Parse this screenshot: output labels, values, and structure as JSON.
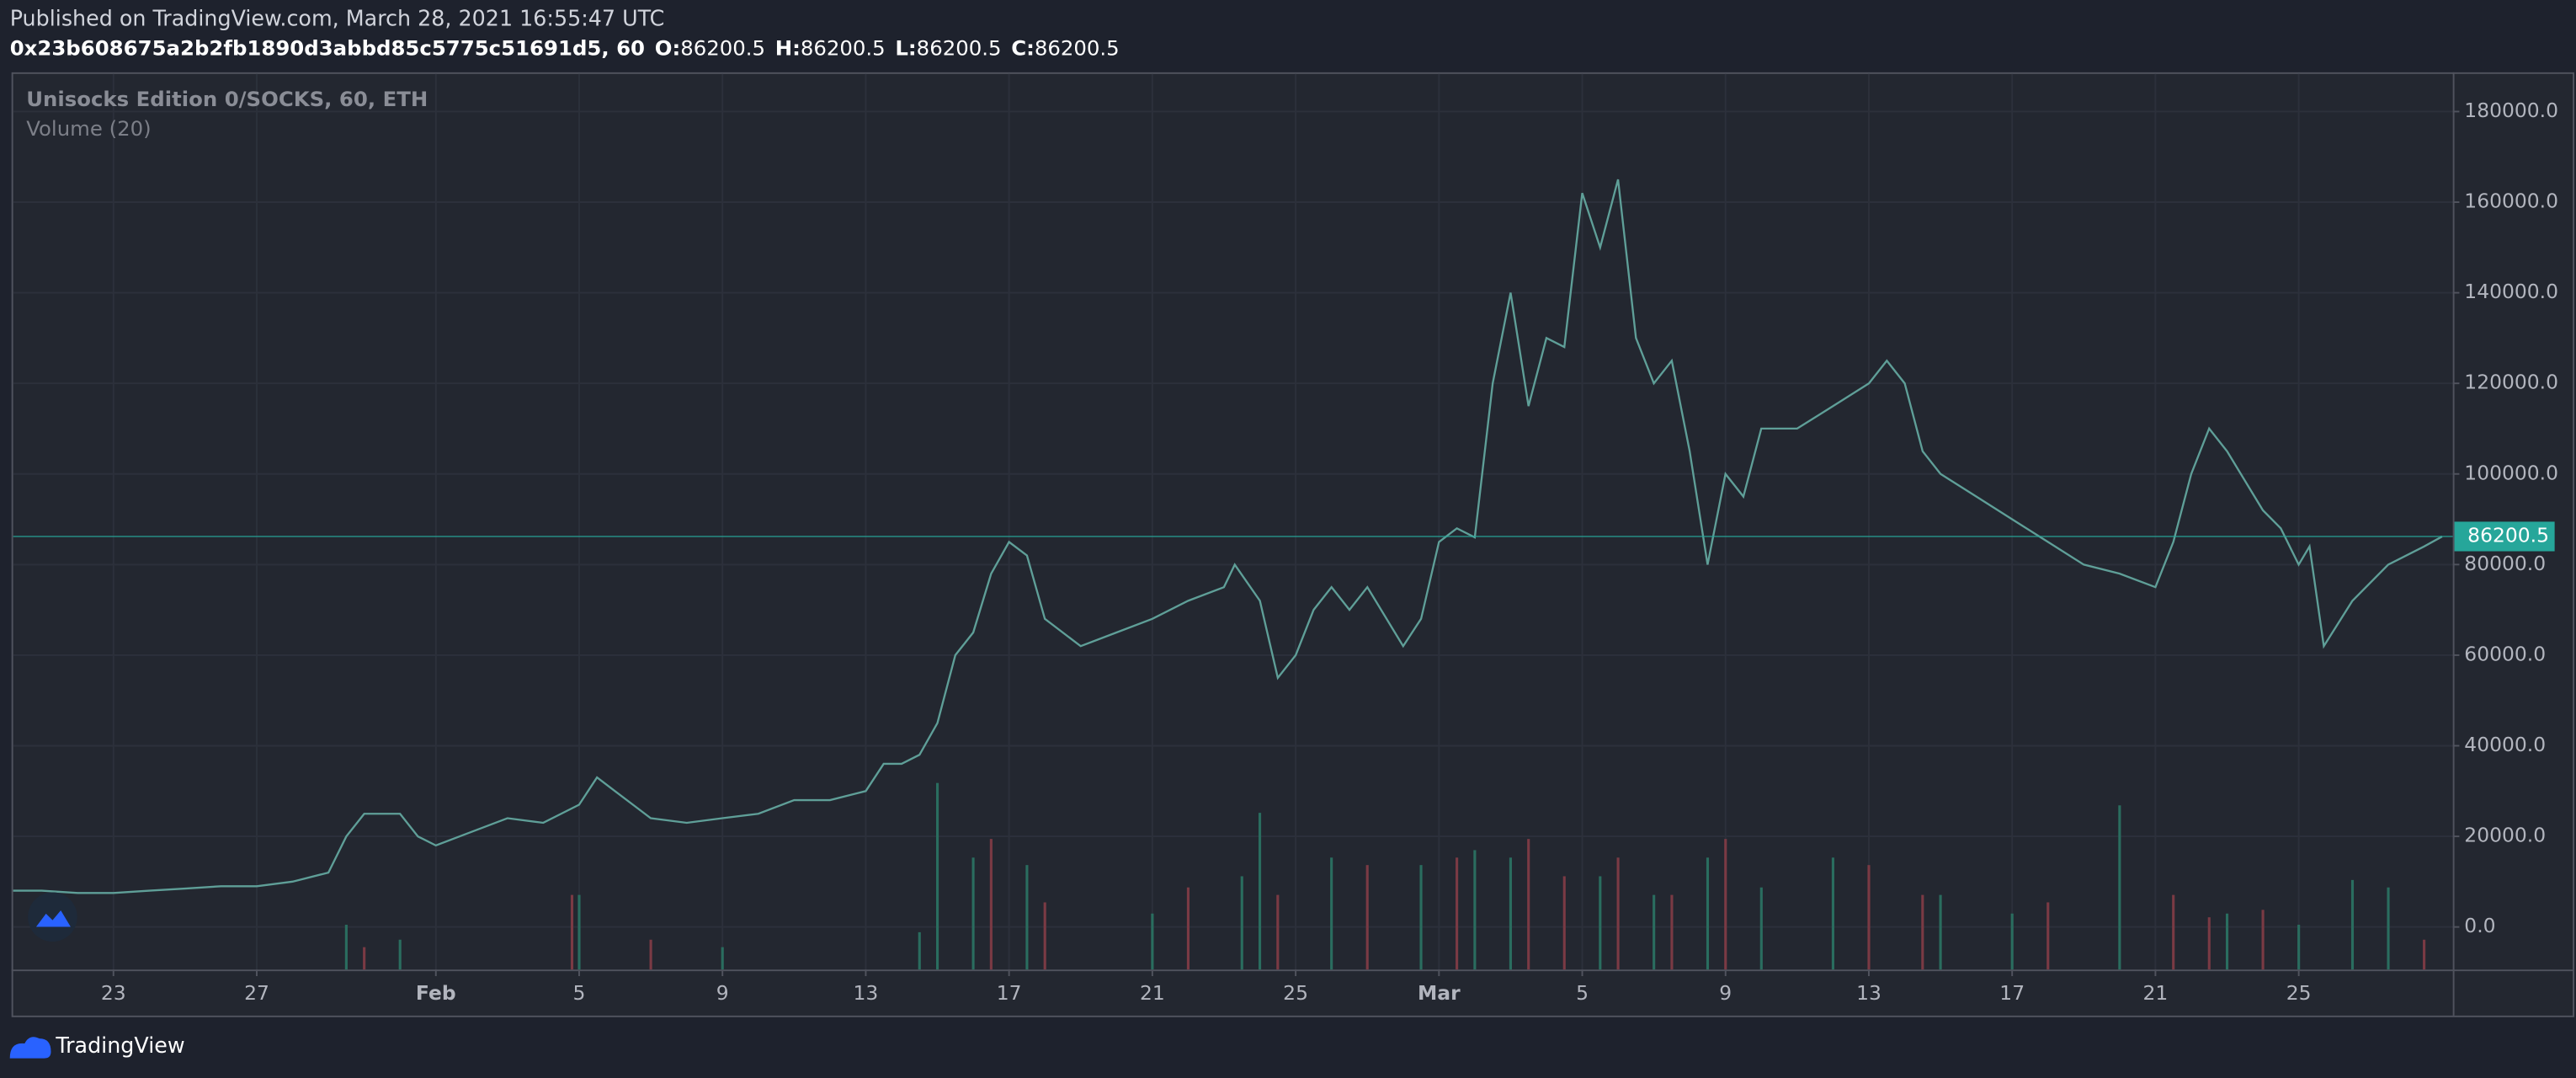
{
  "header": {
    "published": "Published on TradingView.com, March 28, 2021 16:55:47 UTC",
    "symbol": "0x23b608675a2b2fb1890d3abbd85c5775c51691d5, 60",
    "ohlc": [
      {
        "key": "O:",
        "value": "86200.5"
      },
      {
        "key": "H:",
        "value": "86200.5"
      },
      {
        "key": "L:",
        "value": "86200.5"
      },
      {
        "key": "C:",
        "value": "86200.5"
      }
    ]
  },
  "footer": {
    "brand": "TradingView"
  },
  "chart_data": {
    "type": "line",
    "title": "Unisocks Edition 0/SOCKS, 60, ETH",
    "volume_label": "Volume (20)",
    "color": "#5f9f98",
    "x": [
      20.2,
      21,
      22,
      23,
      24,
      25,
      26,
      27,
      28,
      29,
      29.5,
      30,
      31,
      31.5,
      32,
      33,
      34,
      35,
      36,
      36.5,
      37,
      38,
      39,
      40,
      41,
      42,
      43,
      44,
      44.5,
      45,
      45.5,
      46,
      46.5,
      47,
      47.5,
      48,
      48.5,
      49,
      50,
      51,
      52,
      53,
      54,
      54.3,
      55,
      55.5,
      56,
      56.5,
      57,
      57.5,
      58,
      59,
      59.5,
      60,
      60.5,
      61,
      61.5,
      62,
      62.5,
      63,
      63.5,
      64,
      64.5,
      65,
      65.5,
      66,
      66.5,
      67,
      67.5,
      68,
      68.5,
      69,
      70,
      71,
      72,
      72.5,
      73,
      73.5,
      74,
      75,
      76,
      77,
      78,
      79,
      80,
      80.5,
      81,
      81.5,
      82,
      83,
      83.5,
      84,
      84.3,
      84.7,
      85.5,
      86.5,
      87.5,
      88
    ],
    "values": [
      8000,
      8000,
      7500,
      7500,
      8000,
      8500,
      9000,
      9000,
      10000,
      12000,
      20000,
      25000,
      25000,
      20000,
      18000,
      21000,
      24000,
      23000,
      27000,
      33000,
      30000,
      24000,
      23000,
      24000,
      25000,
      28000,
      28000,
      30000,
      36000,
      36000,
      38000,
      45000,
      60000,
      65000,
      78000,
      85000,
      82000,
      68000,
      62000,
      65000,
      68000,
      72000,
      75000,
      80000,
      72000,
      55000,
      60000,
      70000,
      75000,
      70000,
      75000,
      62000,
      68000,
      85000,
      88000,
      86000,
      120000,
      140000,
      115000,
      130000,
      128000,
      162000,
      150000,
      165000,
      130000,
      120000,
      125000,
      105000,
      80000,
      100000,
      95000,
      110000,
      110000,
      115000,
      120000,
      125000,
      120000,
      105000,
      100000,
      95000,
      90000,
      85000,
      80000,
      78000,
      75000,
      85000,
      100000,
      110000,
      105000,
      92000,
      88000,
      80000,
      84000,
      62000,
      72000,
      80000,
      84000,
      86200
    ],
    "last_value": 86200.5,
    "last_color": "#26a69a",
    "xlim": [
      20.2,
      88.3
    ],
    "xticks": [
      23,
      27,
      {
        "value": 32,
        "label": "Feb"
      },
      {
        "value": 36,
        "label": "5"
      },
      {
        "value": 40,
        "label": "9"
      },
      {
        "value": 44,
        "label": "13"
      },
      {
        "value": 48,
        "label": "17"
      },
      {
        "value": 52,
        "label": "21"
      },
      {
        "value": 56,
        "label": "25"
      },
      {
        "value": 60,
        "label": "Mar"
      },
      {
        "value": 64,
        "label": "5"
      },
      {
        "value": 68,
        "label": "9"
      },
      {
        "value": 72,
        "label": "13"
      },
      {
        "value": 76,
        "label": "17"
      },
      {
        "value": 80,
        "label": "21"
      },
      {
        "value": 84,
        "label": "25"
      }
    ],
    "ylim": [
      -9400,
      188300
    ],
    "yticks": [
      {
        "value": 0,
        "label": "0.0"
      },
      {
        "value": 20000,
        "label": "20000.0"
      },
      {
        "value": 40000,
        "label": "40000.0"
      },
      {
        "value": 60000,
        "label": "60000.0"
      },
      {
        "value": 80000,
        "label": "80000.0"
      },
      {
        "value": 100000,
        "label": "100000.0"
      },
      {
        "value": 120000,
        "label": "120000.0"
      },
      {
        "value": 140000,
        "label": "140000.0"
      },
      {
        "value": 160000,
        "label": "160000.0"
      },
      {
        "value": 180000,
        "label": "180000.0"
      }
    ],
    "grid": true,
    "vlim": [
      0,
      240
    ],
    "volume_up": {
      "color": "#2a6d5f",
      "x": [
        29.5,
        31,
        36,
        40,
        45.5,
        46,
        47,
        48.5,
        52,
        54.5,
        55,
        57,
        59.5,
        61,
        62,
        64.5,
        66,
        67.5,
        69,
        71,
        74,
        76,
        79,
        82,
        84,
        85.5,
        86.5
      ],
      "values": [
        12,
        8,
        20,
        6,
        10,
        50,
        30,
        28,
        15,
        25,
        42,
        30,
        28,
        32,
        30,
        25,
        20,
        30,
        22,
        30,
        20,
        15,
        44,
        15,
        12,
        24,
        22
      ]
    },
    "volume_down": {
      "color": "#7a3a44",
      "x": [
        30,
        35.8,
        38,
        47.5,
        49,
        53,
        55.5,
        58,
        60.5,
        62.5,
        63.5,
        65,
        66.5,
        68,
        72,
        73.5,
        77,
        80.5,
        81.5,
        83,
        87.5
      ],
      "values": [
        6,
        20,
        8,
        35,
        18,
        22,
        20,
        28,
        30,
        35,
        25,
        30,
        20,
        35,
        28,
        20,
        18,
        20,
        14,
        16,
        8
      ]
    }
  }
}
